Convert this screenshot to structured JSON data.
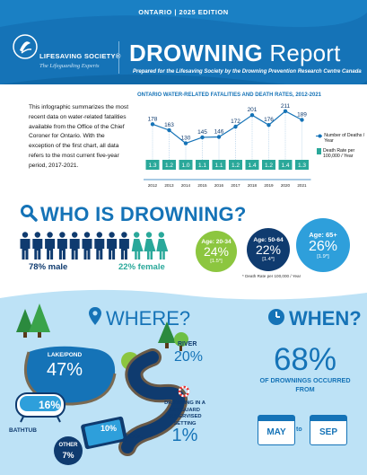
{
  "header": {
    "edition": "ONTARIO  |  2025 EDITION",
    "org_name": "LIFESAVING SOCIETY®",
    "org_tagline": "The Lifeguarding Experts",
    "title_bold": "DROWNING",
    "title_rest": " Report",
    "subtitle": "Prepared for the Lifesaving Society by the Drowning Prevention Research Centre Canada"
  },
  "intro": "This infographic summarizes the most recent data on water-related fatalities available from the Office of the Chief Coroner for Ontario. With the exception of the first chart, all data refers to the most current five-year period, 2017-2021.",
  "chart_data": {
    "type": "line",
    "title": "ONTARIO WATER-RELATED FATALITIES AND DEATH RATES, 2012-2021",
    "categories": [
      "2012",
      "2013",
      "2014",
      "2015",
      "2016",
      "2017",
      "2018",
      "2019",
      "2020",
      "2021"
    ],
    "series": [
      {
        "name": "Number of Deaths / Year",
        "values": [
          178,
          163,
          130,
          145,
          146,
          172,
          201,
          176,
          211,
          189
        ]
      },
      {
        "name": "Death Rate per 100,000 / Year",
        "values": [
          "1.3",
          "1.2",
          "1.0",
          "1.1",
          "1.1",
          "1.2",
          "1.4",
          "1.2",
          "1.4",
          "1.3"
        ]
      }
    ],
    "colors": {
      "line": "#1573b7",
      "rate_box": "#2aa89a"
    }
  },
  "who": {
    "title": "WHO IS DROWNING?",
    "male_label": "78% male",
    "female_label": "22% female",
    "male_count": 9,
    "female_count": 3,
    "colors": {
      "male": "#0f3b6f",
      "female": "#2aa89a"
    },
    "ages": [
      {
        "label": "Age: 20-34",
        "pct": "24%",
        "rate": "[1.5*]",
        "color": "#8cc63f"
      },
      {
        "label": "Age: 50-64",
        "pct": "22%",
        "rate": "[1.4*]",
        "color": "#0f3b6f"
      },
      {
        "label": "Age: 65+",
        "pct": "26%",
        "rate": "[1.9*]",
        "color": "#2e9fdb"
      }
    ],
    "note": "* Death Rate per 100,000 / Year"
  },
  "where": {
    "title": "WHERE?",
    "lake_label": "LAKE/POND",
    "lake_pct": "47%",
    "river_label": "RIVER",
    "river_pct": "20%",
    "bathtub_pct": "16%",
    "bathtub_label": "BATHTUB",
    "pool_pct": "10%",
    "pool_label": "POOL",
    "other_label": "OTHER",
    "other_pct": "7%",
    "supervised_label": "DROWNING IN A LIFEGUARD SUPERVISED SETTING",
    "supervised_pct": "1%"
  },
  "when": {
    "title": "WHEN?",
    "pct": "68%",
    "text": "OF DROWNINGS OCCURRED FROM",
    "from": "MAY",
    "to_word": "to",
    "to": "SEP"
  }
}
